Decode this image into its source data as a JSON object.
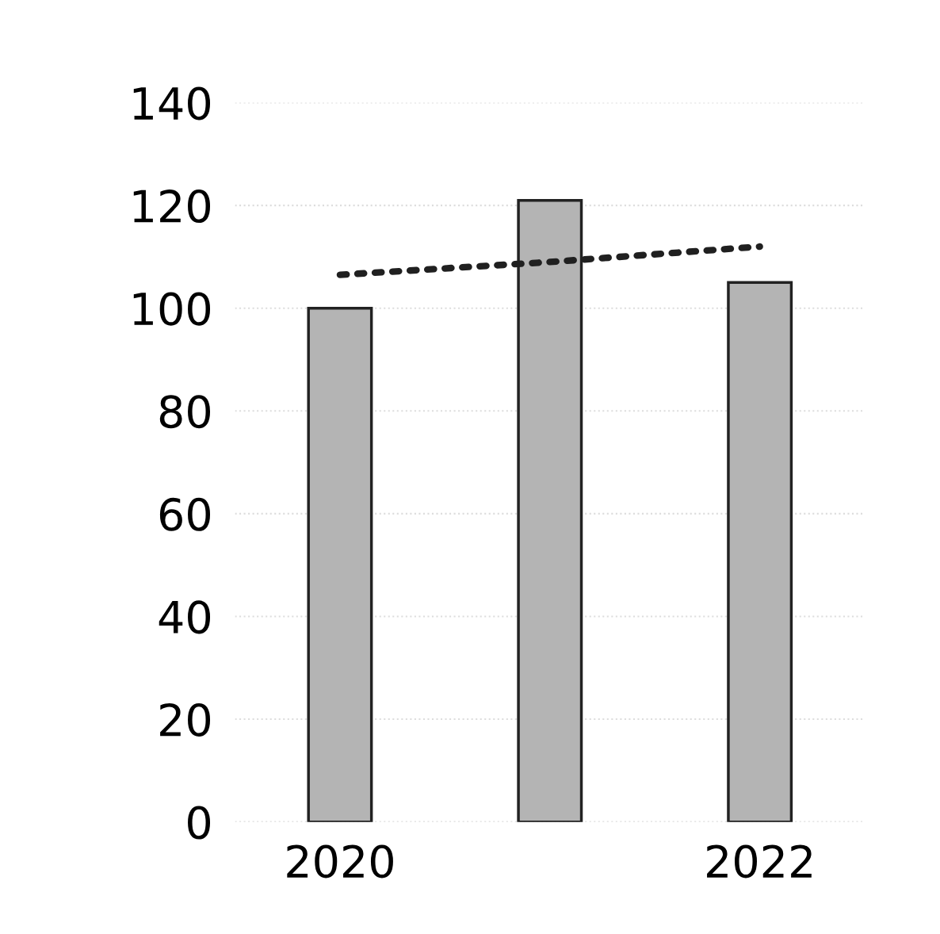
{
  "chart_data": {
    "type": "bar",
    "categories": [
      "2020",
      null,
      "2022"
    ],
    "series": [
      {
        "color": "#b4b4b4",
        "values": [
          100,
          121,
          105
        ]
      },
      {
        "type": "line",
        "color": "#202020",
        "values": [
          106.5,
          109,
          112
        ],
        "line_style": "dotted"
      }
    ],
    "ylim": [
      0,
      140
    ],
    "yticks": [
      0,
      20,
      40,
      60,
      80,
      100,
      120,
      140
    ],
    "grid": "y"
  }
}
